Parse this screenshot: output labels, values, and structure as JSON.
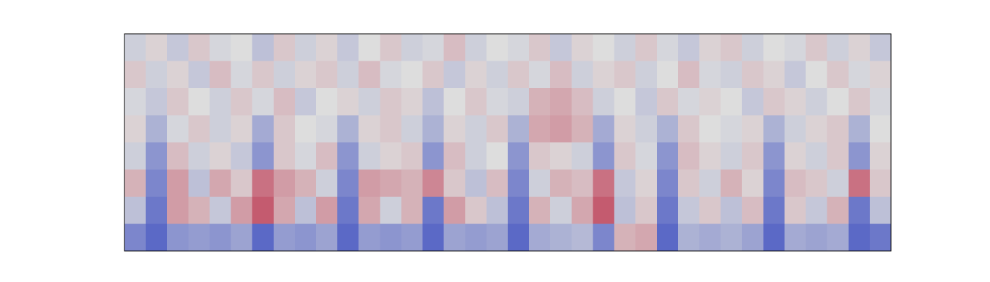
{
  "chart_data": {
    "type": "heatmap",
    "colormap": [
      "#3b4cc0",
      "#dddddd",
      "#b40426"
    ],
    "clim": [
      -1,
      1
    ],
    "values": [
      [
        -0.1,
        0.05,
        -0.15,
        0.1,
        -0.05,
        0,
        -0.2,
        0.1,
        -0.1,
        0.05,
        -0.15,
        0,
        0.1,
        -0.1,
        -0.05,
        0.15,
        -0.1,
        0,
        -0.05,
        0.1,
        -0.15,
        0.05,
        0,
        -0.1,
        0.1,
        -0.05,
        -0.15,
        0.05,
        0.1,
        -0.1,
        0,
        -0.05,
        0.1,
        -0.1,
        0.05,
        -0.15
      ],
      [
        0.1,
        -0.1,
        0.05,
        -0.15,
        0.15,
        -0.05,
        0.1,
        -0.1,
        0.05,
        0.1,
        -0.1,
        0.15,
        -0.05,
        0,
        0.1,
        -0.15,
        0.05,
        -0.1,
        0.1,
        -0.05,
        0.15,
        -0.1,
        0.05,
        0.1,
        -0.1,
        0,
        0.15,
        -0.05,
        -0.1,
        0.1,
        0.05,
        -0.15,
        0,
        0.1,
        -0.05,
        0.05
      ],
      [
        -0.05,
        -0.15,
        0.1,
        0,
        -0.1,
        0.1,
        -0.05,
        0.15,
        -0.15,
        0,
        0.05,
        -0.1,
        0.1,
        0.05,
        -0.2,
        0,
        0.1,
        -0.05,
        -0.1,
        0.2,
        0.25,
        0.15,
        -0.1,
        0,
        -0.15,
        0.1,
        -0.05,
        0.05,
        0,
        -0.15,
        0.1,
        0.05,
        -0.1,
        0,
        0.1,
        -0.05
      ],
      [
        0.05,
        -0.3,
        -0.05,
        0.1,
        -0.1,
        0.05,
        -0.35,
        0.1,
        0,
        -0.05,
        -0.3,
        0.05,
        0.1,
        -0.1,
        -0.3,
        0.05,
        -0.1,
        0.1,
        -0.3,
        0.25,
        0.3,
        0.2,
        -0.35,
        0.05,
        -0.1,
        -0.3,
        0.1,
        0,
        -0.05,
        0.05,
        -0.3,
        -0.1,
        0.05,
        0.1,
        -0.3,
        0
      ],
      [
        -0.1,
        -0.5,
        0.15,
        -0.1,
        0.05,
        -0.15,
        -0.5,
        0.1,
        -0.05,
        0.15,
        -0.5,
        -0.1,
        0.05,
        0.1,
        -0.5,
        0.15,
        -0.1,
        0,
        -0.5,
        0.1,
        0.05,
        -0.1,
        -0.5,
        0.1,
        -0.05,
        -0.5,
        0.15,
        0.05,
        -0.1,
        0.1,
        -0.5,
        0.05,
        -0.1,
        0.1,
        -0.5,
        0.05
      ],
      [
        0.2,
        -0.6,
        0.3,
        -0.2,
        0.25,
        0.1,
        0.5,
        0.3,
        0.2,
        -0.1,
        -0.6,
        0.3,
        0.25,
        0.2,
        0.4,
        0.1,
        -0.2,
        0.15,
        -0.6,
        -0.1,
        0.2,
        0.15,
        0.5,
        -0.15,
        0.05,
        -0.6,
        0.1,
        -0.1,
        0.2,
        0.05,
        -0.6,
        0.15,
        0.1,
        -0.1,
        0.5,
        0.1
      ],
      [
        -0.2,
        -0.7,
        0.3,
        0.2,
        -0.15,
        0.3,
        0.6,
        0.25,
        -0.2,
        0.3,
        -0.7,
        0.25,
        -0.1,
        0.2,
        -0.7,
        0.3,
        0.1,
        -0.2,
        -0.7,
        0.2,
        -0.1,
        0.25,
        0.6,
        -0.2,
        0.1,
        -0.7,
        -0.15,
        0.1,
        -0.2,
        0.15,
        -0.7,
        0.1,
        -0.15,
        0.2,
        -0.7,
        -0.2
      ],
      [
        -0.6,
        -0.8,
        -0.5,
        -0.45,
        -0.5,
        -0.4,
        -0.8,
        -0.45,
        -0.5,
        -0.4,
        -0.8,
        -0.45,
        -0.5,
        -0.45,
        -0.8,
        -0.4,
        -0.45,
        -0.4,
        -0.8,
        -0.35,
        -0.3,
        -0.25,
        -0.6,
        0.2,
        0.25,
        -0.8,
        -0.3,
        -0.35,
        -0.3,
        -0.4,
        -0.8,
        -0.35,
        -0.4,
        -0.35,
        -0.8,
        -0.7
      ]
    ]
  }
}
